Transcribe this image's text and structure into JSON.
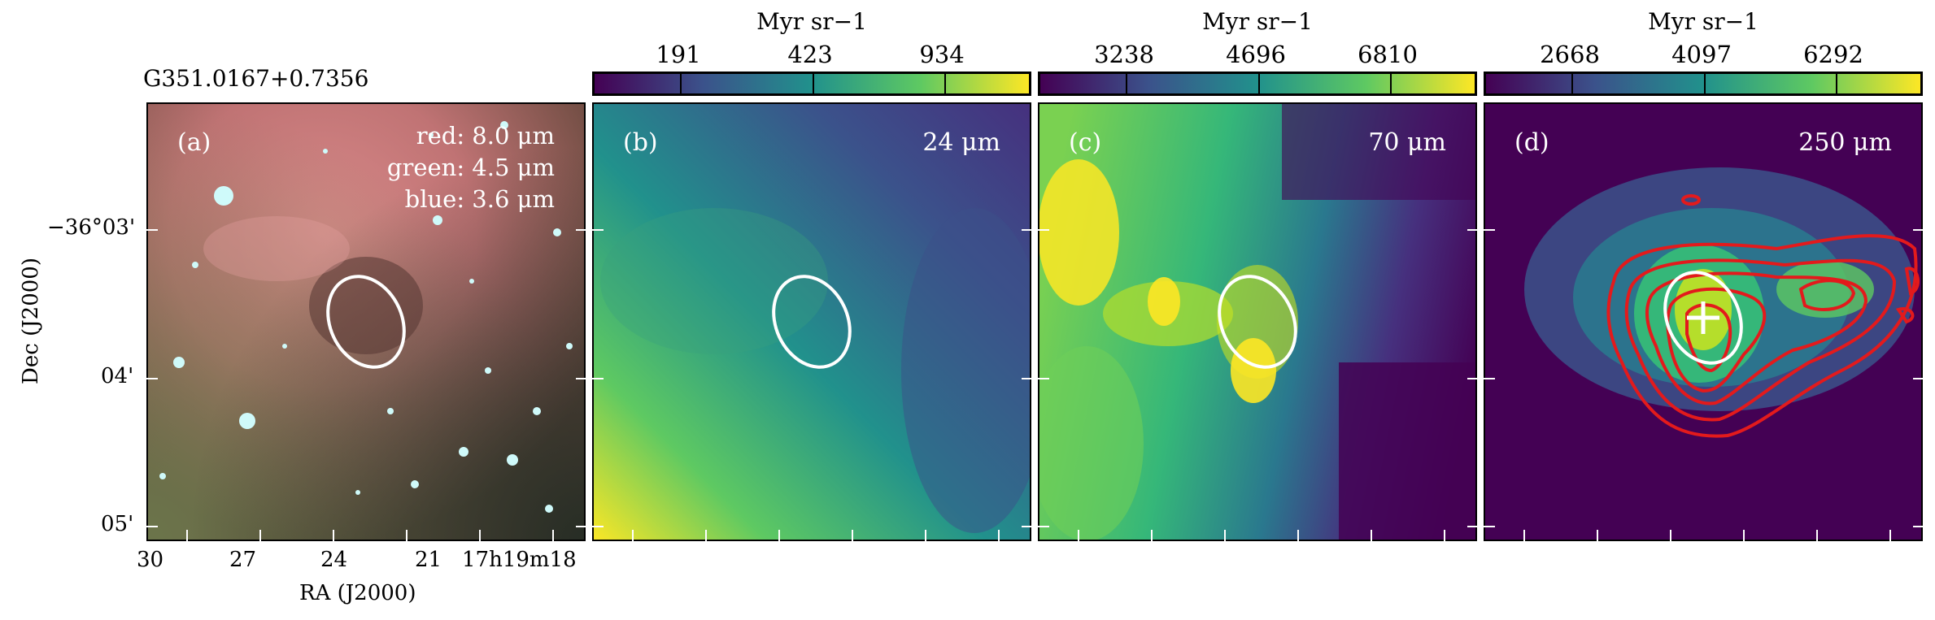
{
  "source_name": "G351.0167+0.7356",
  "axes": {
    "xlabel": "RA (J2000)",
    "ylabel": "Dec (J2000)",
    "ra_ticks": [
      "30",
      "27",
      "24",
      "21",
      "17h19m18"
    ],
    "dec_ticks": [
      "−36°03'",
      "04'",
      "05'"
    ]
  },
  "panels": [
    {
      "id": "a",
      "label": "(a)",
      "band_lines": [
        "red: 8.0 μm",
        "green: 4.5 μm",
        "blue: 3.6 μm"
      ]
    },
    {
      "id": "b",
      "label": "(b)",
      "band": "24 μm",
      "colorbar_unit": "Myr sr−1",
      "colorbar_ticks": [
        "191",
        "423",
        "934"
      ]
    },
    {
      "id": "c",
      "label": "(c)",
      "band": "70 μm",
      "colorbar_unit": "Myr sr−1",
      "colorbar_ticks": [
        "3238",
        "4696",
        "6810"
      ]
    },
    {
      "id": "d",
      "label": "(d)",
      "band": "250 μm",
      "colorbar_unit": "Myr sr−1",
      "colorbar_ticks": [
        "2668",
        "4097",
        "6292"
      ]
    }
  ],
  "colors": {
    "ellipse": "#ffffff",
    "contour": "#e31a1c",
    "marker": "#ffffff",
    "viridis_low": "#440154",
    "viridis_high": "#fde725"
  }
}
